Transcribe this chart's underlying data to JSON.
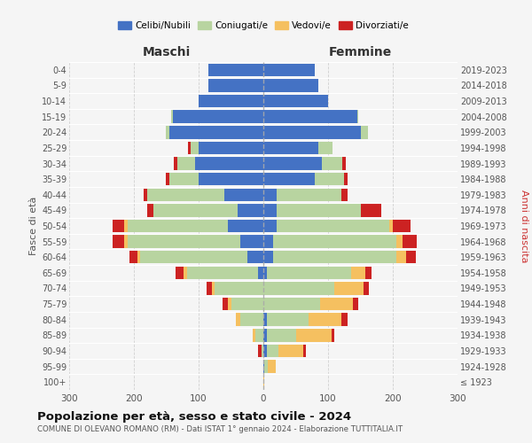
{
  "age_groups": [
    "100+",
    "95-99",
    "90-94",
    "85-89",
    "80-84",
    "75-79",
    "70-74",
    "65-69",
    "60-64",
    "55-59",
    "50-54",
    "45-49",
    "40-44",
    "35-39",
    "30-34",
    "25-29",
    "20-24",
    "15-19",
    "10-14",
    "5-9",
    "0-4"
  ],
  "birth_years": [
    "≤ 1923",
    "1924-1928",
    "1929-1933",
    "1934-1938",
    "1939-1943",
    "1944-1948",
    "1949-1953",
    "1954-1958",
    "1959-1963",
    "1964-1968",
    "1969-1973",
    "1974-1978",
    "1979-1983",
    "1984-1988",
    "1989-1993",
    "1994-1998",
    "1999-2003",
    "2004-2008",
    "2009-2013",
    "2014-2018",
    "2019-2023"
  ],
  "colors": {
    "celibi": "#4472c4",
    "coniugati": "#b8d4a0",
    "vedovi": "#f5c060",
    "divorziati": "#cc2222"
  },
  "males": {
    "celibi": [
      0,
      0,
      0,
      0,
      0,
      0,
      0,
      8,
      25,
      35,
      55,
      40,
      60,
      100,
      105,
      100,
      145,
      140,
      100,
      85,
      85
    ],
    "coniugati": [
      0,
      0,
      3,
      12,
      35,
      50,
      75,
      110,
      165,
      175,
      155,
      130,
      120,
      45,
      28,
      12,
      5,
      2,
      0,
      0,
      0
    ],
    "vedovi": [
      0,
      0,
      0,
      5,
      8,
      5,
      5,
      5,
      5,
      5,
      5,
      0,
      0,
      0,
      0,
      0,
      0,
      0,
      0,
      0,
      0
    ],
    "divorziati": [
      0,
      0,
      5,
      0,
      0,
      8,
      8,
      12,
      12,
      18,
      18,
      10,
      5,
      5,
      5,
      5,
      0,
      0,
      0,
      0,
      0
    ]
  },
  "females": {
    "celibi": [
      0,
      2,
      5,
      5,
      5,
      0,
      0,
      5,
      15,
      15,
      20,
      20,
      20,
      80,
      90,
      85,
      150,
      145,
      100,
      85,
      80
    ],
    "coniugati": [
      0,
      5,
      18,
      45,
      65,
      88,
      110,
      130,
      190,
      190,
      175,
      130,
      100,
      45,
      32,
      22,
      12,
      2,
      0,
      0,
      0
    ],
    "vedovi": [
      2,
      12,
      38,
      55,
      50,
      50,
      45,
      22,
      15,
      10,
      5,
      0,
      0,
      0,
      0,
      0,
      0,
      0,
      0,
      0,
      0
    ],
    "divorziati": [
      0,
      0,
      5,
      5,
      10,
      8,
      8,
      10,
      15,
      22,
      28,
      32,
      10,
      5,
      5,
      0,
      0,
      0,
      0,
      0,
      0
    ]
  },
  "xlim": 300,
  "title": "Popolazione per età, sesso e stato civile - 2024",
  "subtitle": "COMUNE DI OLEVANO ROMANO (RM) - Dati ISTAT 1° gennaio 2024 - Elaborazione TUTTITALIA.IT",
  "ylabel_left": "Fasce di età",
  "ylabel_right": "Anni di nascita",
  "xlabel_left": "Maschi",
  "xlabel_right": "Femmine",
  "legend_labels": [
    "Celibi/Nubili",
    "Coniugati/e",
    "Vedovi/e",
    "Divorziati/e"
  ],
  "background_color": "#f5f5f5",
  "grid_color": "#cccccc"
}
